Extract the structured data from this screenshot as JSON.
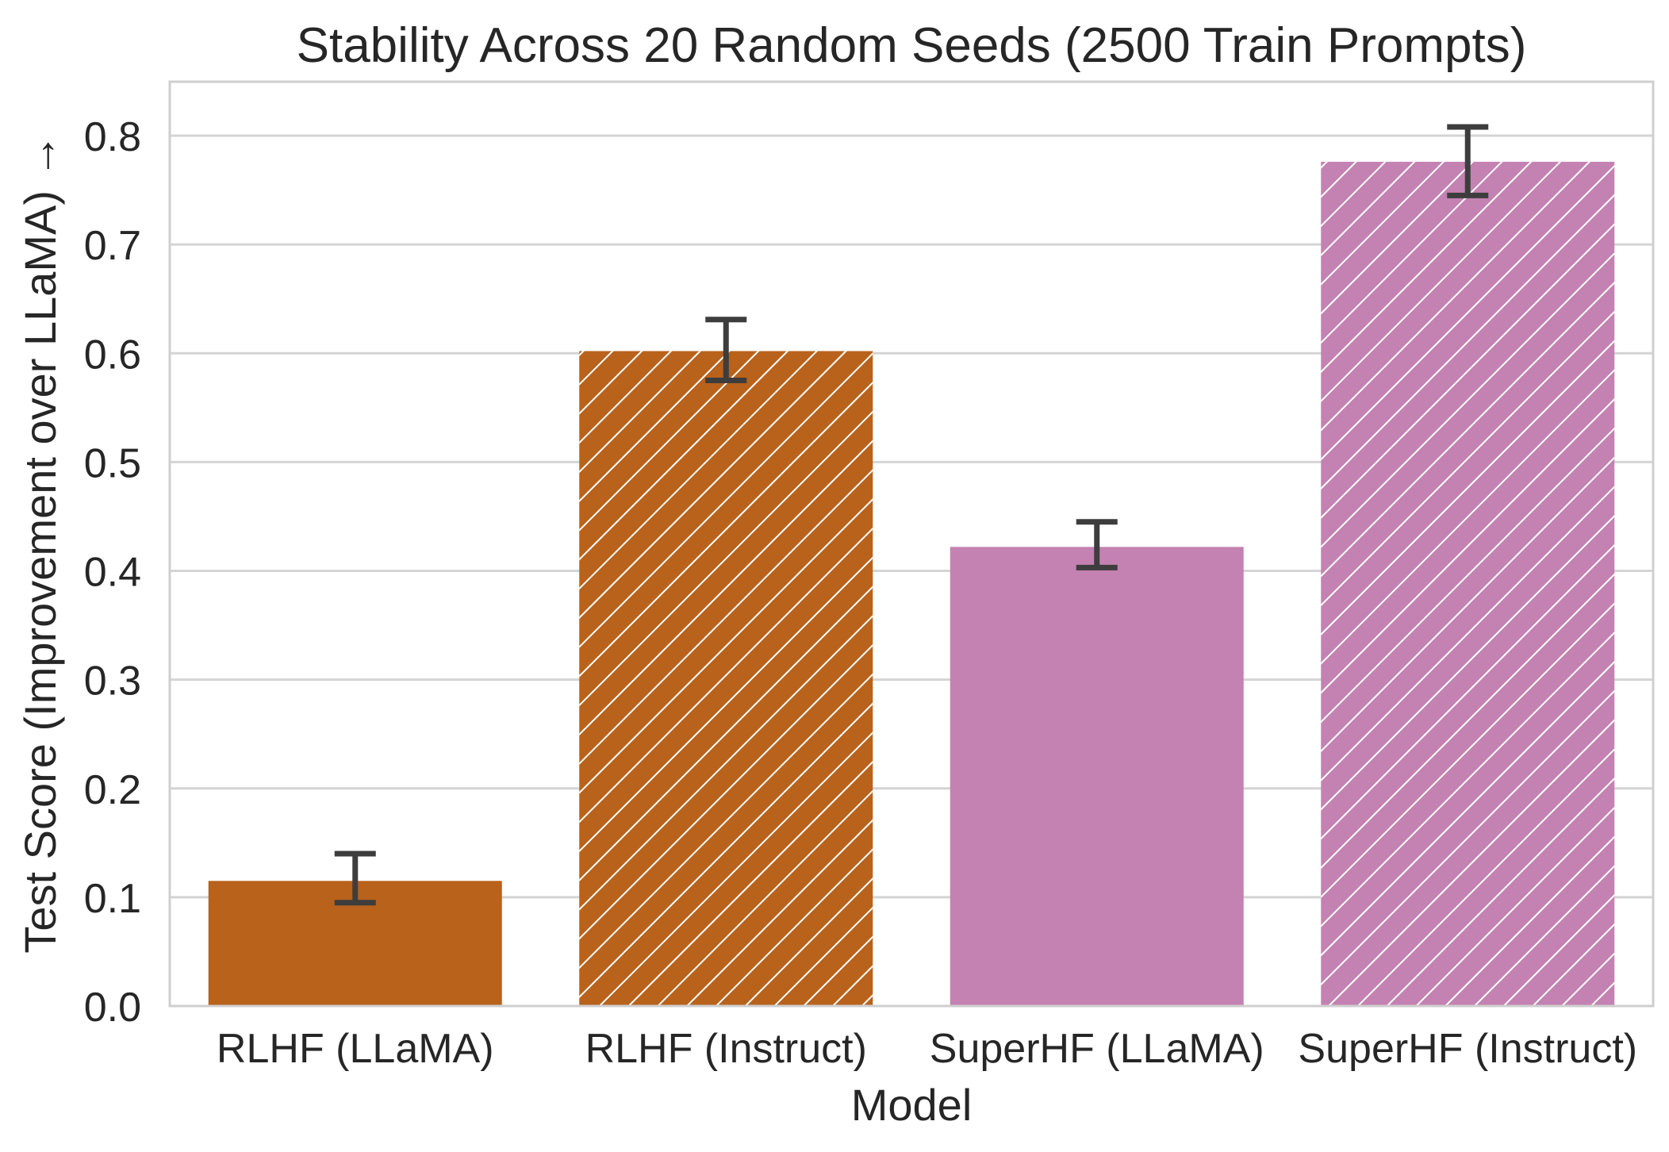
{
  "chart_data": {
    "type": "bar",
    "title": "Stability Across 20 Random Seeds (2500 Train Prompts)",
    "xlabel": "Model",
    "ylabel": "Test Score (Improvement over LLaMA) →",
    "ylim": [
      0.0,
      0.85
    ],
    "yticks": [
      "0.0",
      "0.1",
      "0.2",
      "0.3",
      "0.4",
      "0.5",
      "0.6",
      "0.7",
      "0.8"
    ],
    "grid": true,
    "categories": [
      "RLHF (LLaMA)",
      "RLHF (Instruct)",
      "SuperHF (LLaMA)",
      "SuperHF (Instruct)"
    ],
    "values": [
      0.115,
      0.602,
      0.422,
      0.776
    ],
    "error_low": [
      0.095,
      0.575,
      0.403,
      0.745
    ],
    "error_high": [
      0.14,
      0.631,
      0.445,
      0.808
    ],
    "hatched": [
      false,
      true,
      false,
      true
    ],
    "colors": [
      "#b8621b",
      "#b8621b",
      "#c382b2",
      "#c382b2"
    ]
  }
}
